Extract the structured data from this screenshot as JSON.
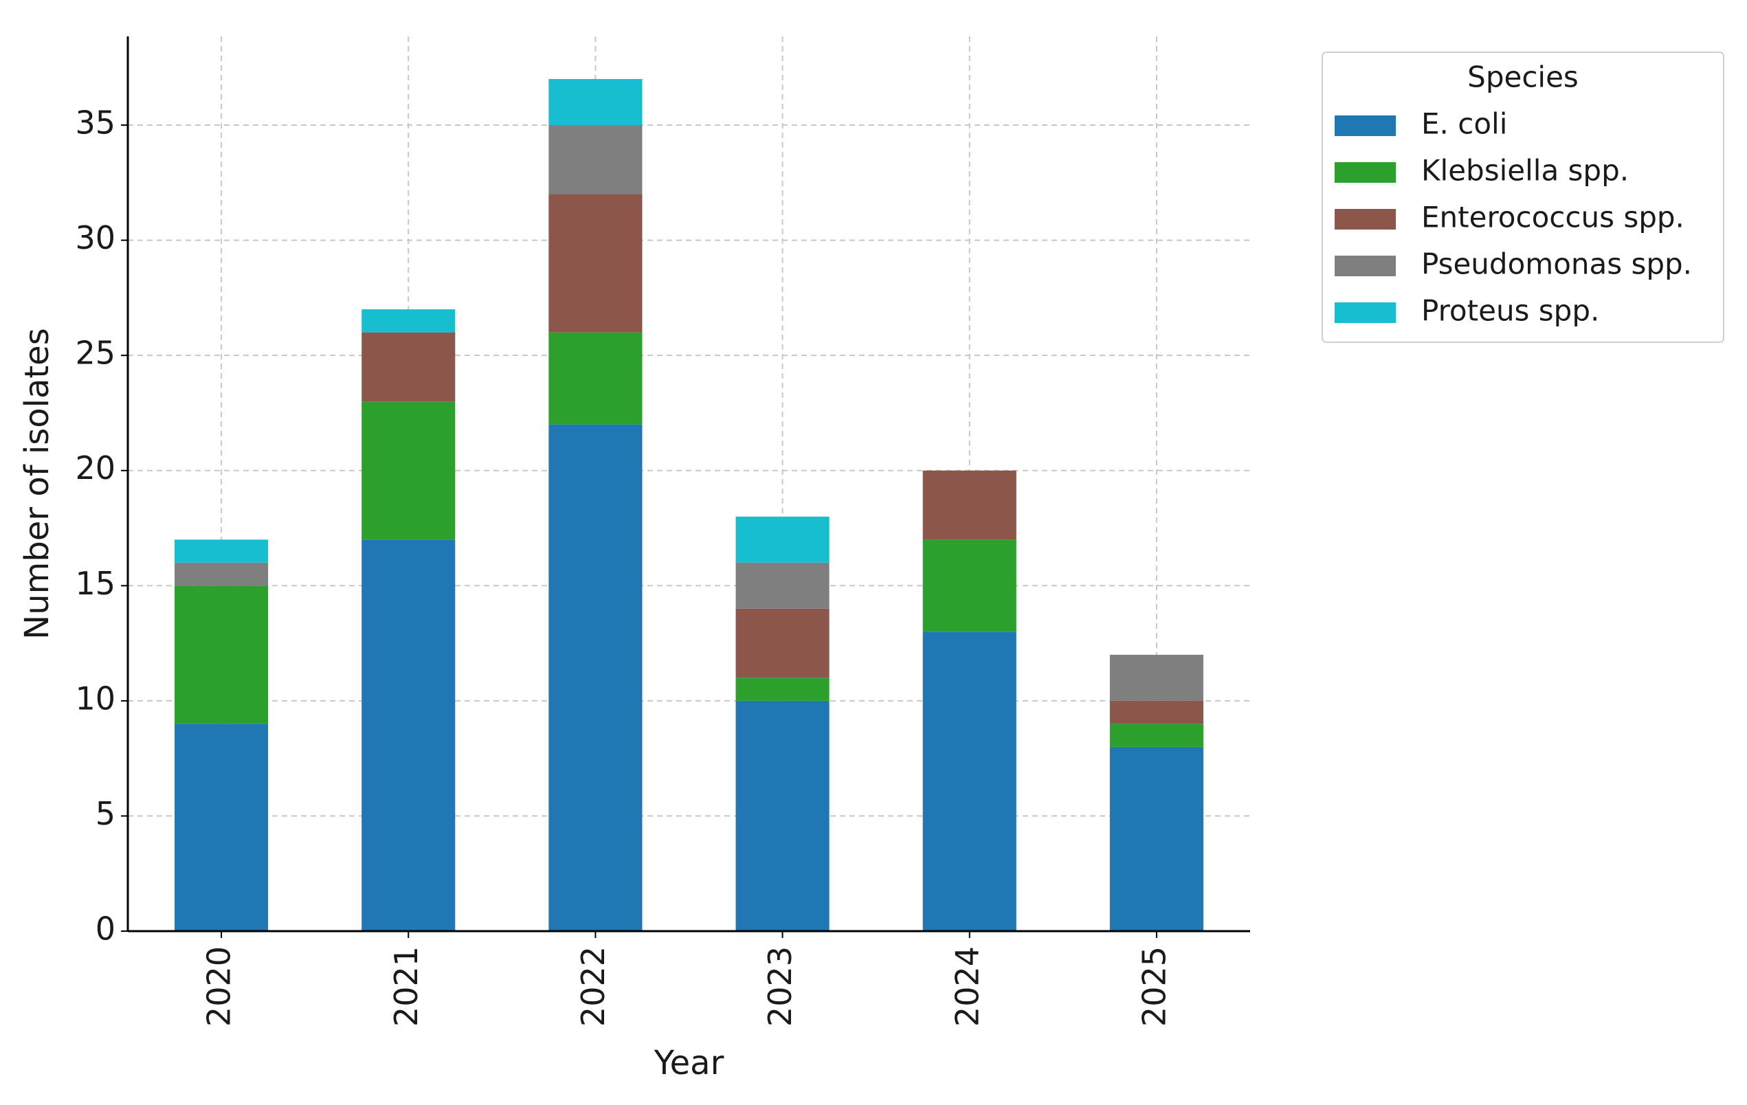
{
  "chart_data": {
    "type": "stacked_bar",
    "x_label": "Year",
    "y_label": "Number of isolates",
    "categories": [
      "2020",
      "2021",
      "2022",
      "2023",
      "2024",
      "2025"
    ],
    "series": [
      {
        "name": "E. coli",
        "color": "#1f77b4",
        "values": [
          9,
          17,
          22,
          10,
          13,
          8
        ]
      },
      {
        "name": "Klebsiella spp.",
        "color": "#2ca02c",
        "values": [
          6,
          6,
          4,
          1,
          4,
          1
        ]
      },
      {
        "name": "Enterococcus spp.",
        "color": "#8c564b",
        "values": [
          0,
          3,
          6,
          3,
          3,
          1
        ]
      },
      {
        "name": "Pseudomonas spp.",
        "color": "#7f7f7f",
        "values": [
          1,
          0,
          3,
          2,
          0,
          2
        ]
      },
      {
        "name": "Proteus spp.",
        "color": "#17becf",
        "values": [
          1,
          1,
          2,
          2,
          0,
          0
        ]
      }
    ],
    "legend_title": "Species",
    "legend_position": "outside upper right",
    "ylim": [
      0,
      38.85
    ],
    "yticks": [
      0,
      5,
      10,
      15,
      20,
      25,
      30,
      35
    ],
    "grid": true
  }
}
